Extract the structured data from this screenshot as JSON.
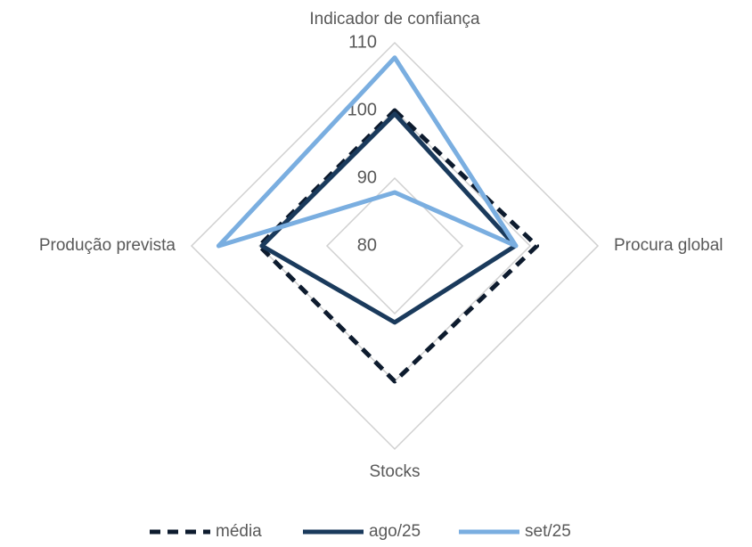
{
  "chart_data": {
    "type": "radar",
    "categories": [
      "Indicador de confiança",
      "Procura global",
      "Stocks",
      "Produção prevista"
    ],
    "rlim": [
      80,
      110
    ],
    "rticks": [
      80,
      90,
      100,
      110
    ],
    "grid": true,
    "legend": "bottom",
    "series": [
      {
        "name": "média",
        "color": "#0d1b2e",
        "dash": true,
        "values": [
          100,
          101,
          100,
          100
        ]
      },
      {
        "name": "ago/25",
        "color": "#1a3a5c",
        "dash": false,
        "values": [
          99.5,
          97.8,
          91.3,
          99.6
        ]
      },
      {
        "name": "set/25",
        "color": "#7aaee0",
        "dash": false,
        "values": [
          107.8,
          97.9,
          72.1,
          106
        ]
      }
    ]
  }
}
